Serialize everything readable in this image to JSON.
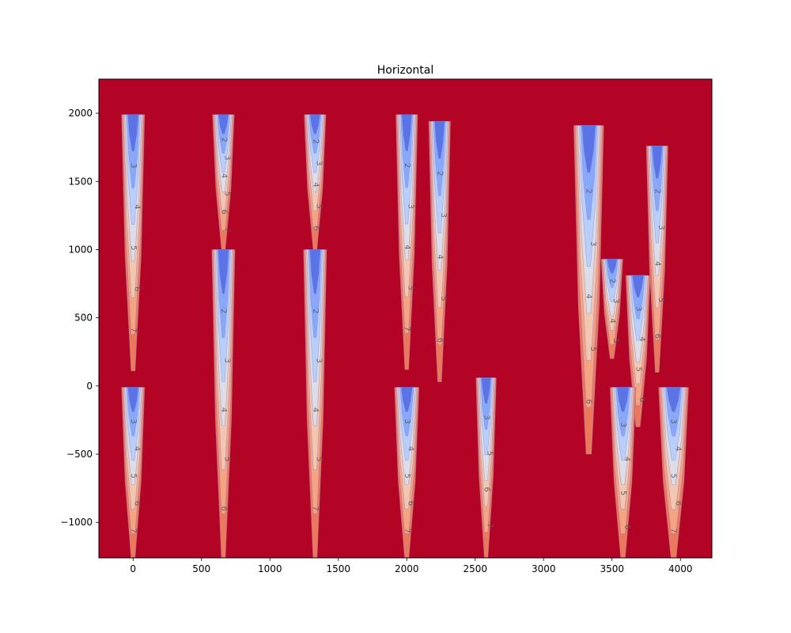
{
  "chart_data": {
    "type": "contour",
    "title": "Horizontal",
    "xlabel": "",
    "ylabel": "",
    "xlim": [
      -250,
      4230
    ],
    "ylim": [
      -1260,
      2250
    ],
    "x_ticks": [
      0,
      500,
      1000,
      1500,
      2000,
      2500,
      3000,
      3500,
      4000
    ],
    "x_tick_labels": [
      "0",
      "500",
      "1000",
      "1500",
      "2000",
      "2500",
      "3000",
      "3500",
      "4000"
    ],
    "y_ticks": [
      -1000,
      -500,
      0,
      500,
      1000,
      1500,
      2000
    ],
    "y_tick_labels": [
      "−1000",
      "−500",
      "0",
      "500",
      "1000",
      "1500",
      "2000"
    ],
    "grid": false,
    "colormap": "coolwarm",
    "background_color": "#b40426",
    "level_values": [
      1,
      2,
      3,
      4,
      5,
      6,
      7
    ],
    "level_colors": [
      "#5a74e6",
      "#8aa8f8",
      "#b9cff9",
      "#dcdde6",
      "#f2c6b0",
      "#f4a383",
      "#e9785d"
    ],
    "plumes": [
      {
        "x": 0,
        "top": 1990,
        "bottom": 110,
        "half_width": 85,
        "labels": [
          "3",
          "4",
          "5",
          "6",
          "7"
        ]
      },
      {
        "x": 660,
        "top": 1990,
        "bottom": 1000,
        "half_width": 80,
        "labels": [
          "2",
          "3",
          "4",
          "5",
          "6",
          "7"
        ]
      },
      {
        "x": 1330,
        "top": 1990,
        "bottom": 1000,
        "half_width": 80,
        "labels": [
          "2",
          "3",
          "4",
          "5",
          "6"
        ]
      },
      {
        "x": 2000,
        "top": 1990,
        "bottom": 120,
        "half_width": 80,
        "labels": [
          "2",
          "3",
          "4",
          "5",
          "7"
        ]
      },
      {
        "x": 2240,
        "top": 1940,
        "bottom": 30,
        "half_width": 80,
        "labels": [
          "2",
          "3",
          "4",
          "5",
          "6"
        ]
      },
      {
        "x": 3330,
        "top": 1910,
        "bottom": -500,
        "half_width": 110,
        "labels": [
          "2",
          "3",
          "4",
          "5",
          "6"
        ]
      },
      {
        "x": 3830,
        "top": 1760,
        "bottom": 100,
        "half_width": 80,
        "labels": [
          "2",
          "3",
          "4",
          "5",
          "6"
        ]
      },
      {
        "x": 660,
        "top": 1000,
        "bottom": -1260,
        "half_width": 85,
        "labels": [
          "2",
          "3",
          "4",
          "5",
          "6"
        ]
      },
      {
        "x": 1330,
        "top": 1000,
        "bottom": -1260,
        "half_width": 85,
        "labels": [
          "2",
          "3",
          "4",
          "5",
          "7"
        ]
      },
      {
        "x": 3500,
        "top": 930,
        "bottom": 200,
        "half_width": 80,
        "labels": [
          "2",
          "3",
          "4",
          "5"
        ]
      },
      {
        "x": 3690,
        "top": 810,
        "bottom": -300,
        "half_width": 90,
        "labels": [
          "3",
          "4",
          "5",
          "6"
        ]
      },
      {
        "x": 0,
        "top": -10,
        "bottom": -1260,
        "half_width": 85,
        "labels": [
          "3",
          "4",
          "5",
          "6",
          "7"
        ]
      },
      {
        "x": 2000,
        "top": -10,
        "bottom": -1260,
        "half_width": 90,
        "labels": [
          "3",
          "4",
          "5",
          "6",
          "7"
        ]
      },
      {
        "x": 2580,
        "top": 60,
        "bottom": -1260,
        "half_width": 75,
        "labels": [
          "3",
          "5",
          "6",
          "7"
        ]
      },
      {
        "x": 3580,
        "top": -10,
        "bottom": -1260,
        "half_width": 95,
        "labels": [
          "3",
          "4",
          "5",
          "6"
        ]
      },
      {
        "x": 3950,
        "top": -10,
        "bottom": -1260,
        "half_width": 110,
        "labels": [
          "3",
          "4",
          "5",
          "6",
          "7"
        ]
      }
    ]
  }
}
